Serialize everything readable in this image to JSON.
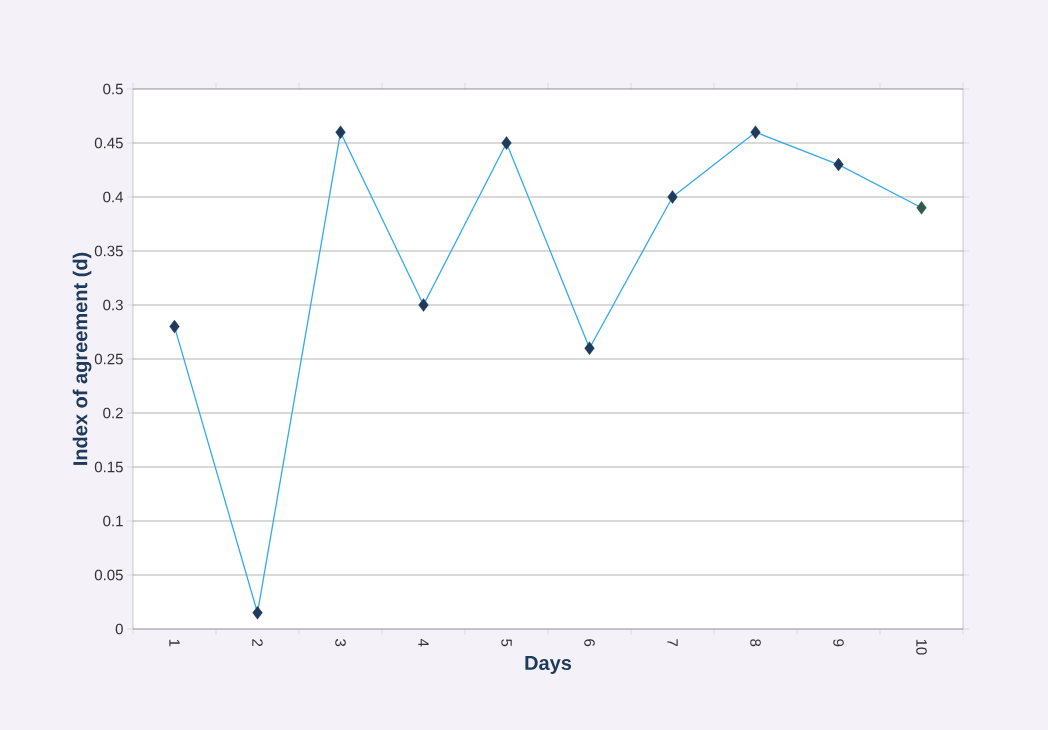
{
  "chart_data": {
    "type": "line",
    "xlabel": "Days",
    "ylabel": "Index of agreement (d)",
    "categories": [
      "1",
      "2",
      "3",
      "4",
      "5",
      "6",
      "7",
      "8",
      "9",
      "10"
    ],
    "series": [
      {
        "color": "#33aaee",
        "colors": [
          "#1f3b5c",
          "#1f3b5c",
          "#1f3b5c",
          "#1f3b5c",
          "#1f3b5c",
          "#1f3b5c",
          "#1f3b5c",
          "#1f3b5c",
          "#1f3b5c",
          "#2f5a4c"
        ],
        "values": [
          0.28,
          0.015,
          0.46,
          0.3,
          0.45,
          0.26,
          0.4,
          0.46,
          0.43,
          0.39
        ]
      }
    ],
    "ylim": [
      0,
      0.5
    ],
    "yticks": [
      0,
      0.05,
      0.1,
      0.15,
      0.2,
      0.25,
      0.3,
      0.35,
      0.4,
      0.45,
      0.5
    ],
    "grid": "y",
    "marker": "diamond",
    "line_style": "solid"
  }
}
